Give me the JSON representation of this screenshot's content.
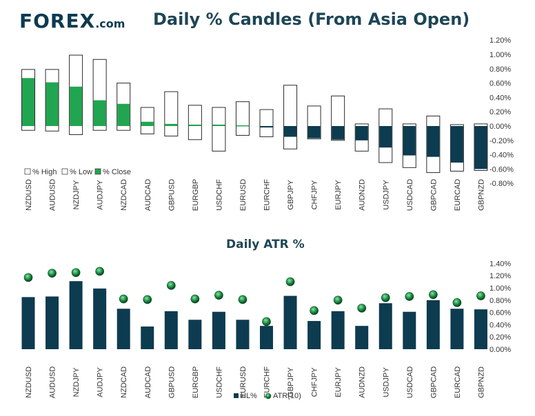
{
  "logo": {
    "brand_main": "FOREX",
    "brand_suffix": ".com"
  },
  "chart_data": [
    {
      "type": "candlestick",
      "title": "Daily % Candles (From Asia Open)",
      "categories": [
        "NZDUSD",
        "AUDUSD",
        "NZDJPY",
        "AUDJPY",
        "NZDCAD",
        "AUDCAD",
        "GBPUSD",
        "EURGBP",
        "USDCHF",
        "EURUSD",
        "EURCHF",
        "GBPJPY",
        "CHFJPY",
        "EURJPY",
        "AUDNZD",
        "USDJPY",
        "USDCAD",
        "GBPCAD",
        "EURCAD",
        "GBPNZD"
      ],
      "series": [
        {
          "name": "% High",
          "values": [
            0.79,
            0.79,
            0.99,
            0.93,
            0.6,
            0.26,
            0.48,
            0.29,
            0.26,
            0.34,
            0.23,
            0.57,
            0.28,
            0.42,
            0.03,
            0.24,
            0.03,
            0.14,
            0.02,
            0.03
          ]
        },
        {
          "name": "% Low",
          "values": [
            -0.06,
            -0.07,
            -0.12,
            -0.06,
            -0.06,
            -0.11,
            -0.14,
            -0.19,
            -0.35,
            -0.13,
            -0.15,
            -0.32,
            -0.18,
            -0.2,
            -0.35,
            -0.51,
            -0.58,
            -0.65,
            -0.63,
            -0.62
          ]
        },
        {
          "name": "% Close",
          "values": [
            0.67,
            0.61,
            0.55,
            0.36,
            0.31,
            0.06,
            0.03,
            0.02,
            0.02,
            0.01,
            -0.02,
            -0.15,
            -0.17,
            -0.19,
            -0.2,
            -0.3,
            -0.41,
            -0.43,
            -0.51,
            -0.6
          ]
        }
      ],
      "ylim": [
        -0.8,
        1.2
      ],
      "yticks": [
        "1.20%",
        "1.00%",
        "0.80%",
        "0.60%",
        "0.40%",
        "0.20%",
        "0.00%",
        "-0.20%",
        "-0.40%",
        "-0.60%",
        "-0.80%"
      ],
      "yticks_values": [
        1.2,
        1.0,
        0.8,
        0.6,
        0.4,
        0.2,
        0.0,
        -0.2,
        -0.4,
        -0.6,
        -0.8
      ],
      "legend_position": "bottom-left",
      "colors": {
        "positive": "#21a550",
        "negative": "#0d3b4f",
        "wick": "#2b2b2b"
      }
    },
    {
      "type": "bar",
      "title": "Daily ATR %",
      "categories": [
        "NZDUSD",
        "AUDUSD",
        "NZDJPY",
        "AUDJPY",
        "NZDCAD",
        "AUDCAD",
        "GBPUSD",
        "EURGBP",
        "USDCHF",
        "EURUSD",
        "EURCHF",
        "GBPJPY",
        "CHFJPY",
        "EURJPY",
        "AUDNZD",
        "USDJPY",
        "USDCAD",
        "GBPCAD",
        "EURCAD",
        "GBPNZD"
      ],
      "series": [
        {
          "name": "HL%",
          "type": "bar",
          "values": [
            0.85,
            0.86,
            1.11,
            0.99,
            0.66,
            0.37,
            0.62,
            0.48,
            0.61,
            0.48,
            0.38,
            0.87,
            0.46,
            0.62,
            0.38,
            0.75,
            0.61,
            0.8,
            0.66,
            0.65
          ]
        },
        {
          "name": "ATR(10)",
          "type": "scatter",
          "values": [
            1.17,
            1.24,
            1.25,
            1.27,
            0.82,
            0.81,
            1.04,
            0.82,
            0.88,
            0.81,
            0.45,
            1.1,
            0.63,
            0.8,
            0.67,
            0.84,
            0.86,
            0.89,
            0.76,
            0.87
          ]
        }
      ],
      "ylim": [
        0,
        1.4
      ],
      "yticks": [
        "1.40%",
        "1.20%",
        "1.00%",
        "0.80%",
        "0.60%",
        "0.40%",
        "0.20%",
        "0.00%"
      ],
      "yticks_values": [
        1.4,
        1.2,
        1.0,
        0.8,
        0.6,
        0.4,
        0.2,
        0.0
      ],
      "legend_position": "bottom",
      "colors": {
        "bar": "#0d3b4f",
        "marker": "#1f9a4a"
      }
    }
  ]
}
